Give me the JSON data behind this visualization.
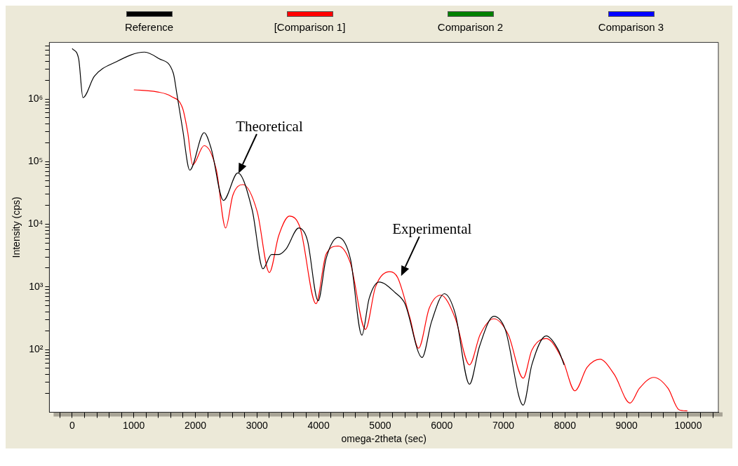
{
  "chart_data": {
    "type": "line",
    "xlabel": "omega-2theta (sec)",
    "ylabel": "Intensity (cps)",
    "xlim": [
      -370,
      10490
    ],
    "ylim": [
      10,
      8000000
    ],
    "log": "y",
    "grid": false,
    "legend": "top",
    "marker": "none",
    "line_style": "solid",
    "xticks": [
      {
        "value": -200,
        "label": null
      },
      0,
      {
        "value": 200,
        "label": null
      },
      {
        "value": 400,
        "label": null
      },
      {
        "value": 600,
        "label": null
      },
      {
        "value": 800,
        "label": null
      },
      1000,
      {
        "value": 1200,
        "label": null
      },
      {
        "value": 1400,
        "label": null
      },
      {
        "value": 1600,
        "label": null
      },
      {
        "value": 1800,
        "label": null
      },
      2000,
      {
        "value": 2200,
        "label": null
      },
      {
        "value": 2400,
        "label": null
      },
      {
        "value": 2600,
        "label": null
      },
      {
        "value": 2800,
        "label": null
      },
      3000,
      {
        "value": 3200,
        "label": null
      },
      {
        "value": 3400,
        "label": null
      },
      {
        "value": 3600,
        "label": null
      },
      {
        "value": 3800,
        "label": null
      },
      4000,
      {
        "value": 4200,
        "label": null
      },
      {
        "value": 4400,
        "label": null
      },
      {
        "value": 4600,
        "label": null
      },
      {
        "value": 4800,
        "label": null
      },
      5000,
      {
        "value": 5200,
        "label": null
      },
      {
        "value": 5400,
        "label": null
      },
      {
        "value": 5600,
        "label": null
      },
      {
        "value": 5800,
        "label": null
      },
      6000,
      {
        "value": 6200,
        "label": null
      },
      {
        "value": 6400,
        "label": null
      },
      {
        "value": 6600,
        "label": null
      },
      {
        "value": 6800,
        "label": null
      },
      7000,
      {
        "value": 7200,
        "label": null
      },
      {
        "value": 7400,
        "label": null
      },
      {
        "value": 7600,
        "label": null
      },
      {
        "value": 7800,
        "label": null
      },
      8000,
      {
        "value": 8200,
        "label": null
      },
      {
        "value": 8400,
        "label": null
      },
      {
        "value": 8600,
        "label": null
      },
      {
        "value": 8800,
        "label": null
      },
      9000,
      {
        "value": 9200,
        "label": null
      },
      {
        "value": 9400,
        "label": null
      },
      {
        "value": 9600,
        "label": null
      },
      {
        "value": 9800,
        "label": null
      },
      10000,
      {
        "value": 10200,
        "label": null
      },
      {
        "value": 10400,
        "label": null
      }
    ],
    "yticks": [
      {
        "value": 20,
        "label": null
      },
      {
        "value": 30,
        "label": null
      },
      {
        "value": 40,
        "label": null
      },
      {
        "value": 50,
        "label": null
      },
      {
        "value": 60,
        "label": null
      },
      {
        "value": 70,
        "label": null
      },
      {
        "value": 80,
        "label": null
      },
      {
        "value": 90,
        "label": null
      },
      {
        "value": 100,
        "label": "10²"
      },
      {
        "value": 200,
        "label": null
      },
      {
        "value": 300,
        "label": null
      },
      {
        "value": 400,
        "label": null
      },
      {
        "value": 500,
        "label": null
      },
      {
        "value": 600,
        "label": null
      },
      {
        "value": 700,
        "label": null
      },
      {
        "value": 800,
        "label": null
      },
      {
        "value": 900,
        "label": null
      },
      {
        "value": 1000,
        "label": "10³"
      },
      {
        "value": 2000,
        "label": null
      },
      {
        "value": 3000,
        "label": null
      },
      {
        "value": 4000,
        "label": null
      },
      {
        "value": 5000,
        "label": null
      },
      {
        "value": 6000,
        "label": null
      },
      {
        "value": 7000,
        "label": null
      },
      {
        "value": 8000,
        "label": null
      },
      {
        "value": 9000,
        "label": null
      },
      {
        "value": 10000,
        "label": "10⁴"
      },
      {
        "value": 20000,
        "label": null
      },
      {
        "value": 30000,
        "label": null
      },
      {
        "value": 40000,
        "label": null
      },
      {
        "value": 50000,
        "label": null
      },
      {
        "value": 60000,
        "label": null
      },
      {
        "value": 70000,
        "label": null
      },
      {
        "value": 80000,
        "label": null
      },
      {
        "value": 90000,
        "label": null
      },
      {
        "value": 100000,
        "label": "10⁵"
      },
      {
        "value": 200000,
        "label": null
      },
      {
        "value": 300000,
        "label": null
      },
      {
        "value": 400000,
        "label": null
      },
      {
        "value": 500000,
        "label": null
      },
      {
        "value": 600000,
        "label": null
      },
      {
        "value": 700000,
        "label": null
      },
      {
        "value": 800000,
        "label": null
      },
      {
        "value": 900000,
        "label": null
      },
      {
        "value": 1000000,
        "label": "10⁶"
      },
      {
        "value": 2000000,
        "label": null
      },
      {
        "value": 3000000,
        "label": null
      },
      {
        "value": 4000000,
        "label": null
      },
      {
        "value": 5000000,
        "label": null
      },
      {
        "value": 6000000,
        "label": null
      },
      {
        "value": 7000000,
        "label": null
      }
    ],
    "annotations": [
      {
        "text": "Theoretical",
        "x": 2700,
        "y": 65000
      },
      {
        "text": "Experimental",
        "x": 5340,
        "y": 1500
      }
    ],
    "series": [
      {
        "name": "Reference",
        "color": "#000000",
        "x": [
          0,
          105,
          175,
          360,
          710,
          1175,
          1409,
          1641,
          1700,
          1793,
          1909,
          2142,
          2258,
          2456,
          2689,
          2922,
          3097,
          3236,
          3353,
          3469,
          3679,
          3818,
          3993,
          4121,
          4319,
          4517,
          4703,
          4820,
          4983,
          5250,
          5402,
          5681,
          5832,
          6042,
          6217,
          6450,
          6612,
          6845,
          7030,
          7322,
          7462,
          7695,
          7893,
          7986
        ],
        "values": [
          6400000,
          4400000,
          1050000,
          2300000,
          3900000,
          5600000,
          4400000,
          2600000,
          1200000,
          330000,
          73000,
          290000,
          160000,
          24000,
          66000,
          17000,
          1950,
          3300,
          3300,
          4000,
          8700,
          5600,
          600,
          2800,
          6200,
          2800,
          170,
          650,
          1200,
          800,
          540,
          75,
          275,
          780,
          380,
          28,
          112,
          340,
          210,
          13,
          57,
          165,
          98,
          57
        ]
      },
      {
        "name": "[Comparison 1]",
        "color": "#ff0000",
        "x": [
          1001,
          1374,
          1607,
          1793,
          1874,
          1956,
          2142,
          2340,
          2491,
          2608,
          2771,
          3003,
          3201,
          3353,
          3527,
          3702,
          3958,
          4121,
          4319,
          4517,
          4761,
          4924,
          5157,
          5285,
          5483,
          5623,
          5797,
          5984,
          6217,
          6450,
          6624,
          6845,
          7078,
          7322,
          7462,
          7695,
          7963,
          8161,
          8359,
          8568,
          8801,
          9057,
          9208,
          9441,
          9674,
          9849,
          9988
        ],
        "values": [
          1400000,
          1300000,
          1100000,
          710000,
          300000,
          89000,
          180000,
          74000,
          8700,
          29000,
          43000,
          16000,
          1700,
          6600,
          13500,
          8700,
          540,
          3300,
          4500,
          2400,
          210,
          1000,
          1750,
          1400,
          320,
          105,
          460,
          740,
          320,
          57,
          175,
          310,
          175,
          35,
          98,
          150,
          68,
          22,
          52,
          70,
          40,
          14,
          24,
          36,
          24,
          11,
          10.5
        ]
      },
      {
        "name": "Comparison 2",
        "color": "#008000"
      },
      {
        "name": "Comparison 3",
        "color": "#0000ff"
      }
    ]
  }
}
